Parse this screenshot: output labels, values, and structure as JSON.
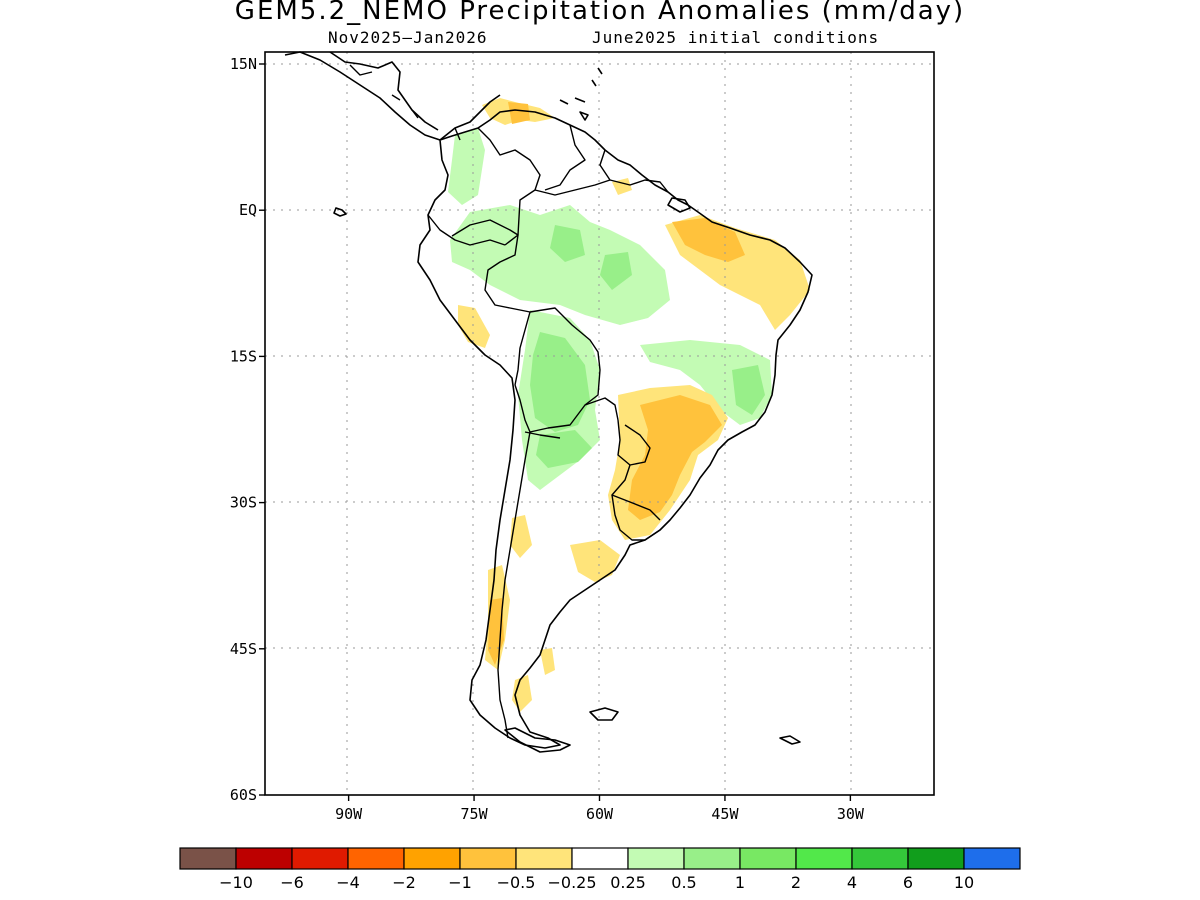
{
  "map": {
    "title": "GEM5.2_NEMO Precipitation Anomalies (mm/day)",
    "period": "Nov2025–Jan2026",
    "init": "June2025 initial conditions",
    "lat_labels": [
      "15N",
      "EQ",
      "15S",
      "30S",
      "45S",
      "60S"
    ],
    "lon_labels": [
      "90W",
      "75W",
      "60W",
      "45W",
      "30W"
    ],
    "extent": {
      "lon": [
        -100,
        -20
      ],
      "lat": [
        -60,
        15
      ]
    }
  },
  "legend": {
    "colors": [
      "#7a5248",
      "#bd0000",
      "#e01a00",
      "#ff6400",
      "#ffa200",
      "#ffc23c",
      "#ffe47a",
      "#ffffff",
      "#c3fbb4",
      "#98ef89",
      "#78e863",
      "#52e84a",
      "#34c83a",
      "#119e1c",
      "#1e6eeb"
    ],
    "labels": [
      "−10",
      "−6",
      "−4",
      "−2",
      "−1",
      "−0.5",
      "−0.25",
      "0.25",
      "0.5",
      "1",
      "2",
      "4",
      "6",
      "10"
    ]
  }
}
